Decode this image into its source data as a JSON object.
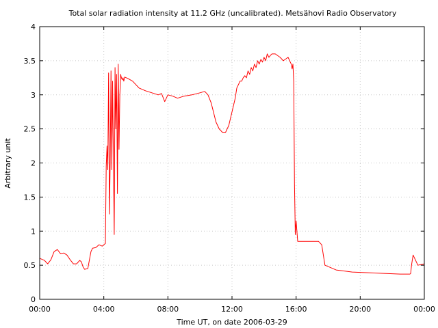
{
  "chart_data": {
    "type": "line",
    "title": "Total solar radiation intensity at 11.2 GHz (uncalibrated). Metsähovi Radio Observatory",
    "xlabel": "Time UT, on date 2006-03-29",
    "ylabel": "Arbitrary unit",
    "xlim": [
      0,
      24
    ],
    "ylim": [
      0,
      4
    ],
    "x_ticks": [
      {
        "value": 0,
        "label": "00:00"
      },
      {
        "value": 4,
        "label": "04:00"
      },
      {
        "value": 8,
        "label": "08:00"
      },
      {
        "value": 12,
        "label": "12:00"
      },
      {
        "value": 16,
        "label": "16:00"
      },
      {
        "value": 20,
        "label": "20:00"
      },
      {
        "value": 24,
        "label": "00:00"
      }
    ],
    "y_ticks": [
      {
        "value": 0,
        "label": "0"
      },
      {
        "value": 0.5,
        "label": "0.5"
      },
      {
        "value": 1,
        "label": "1"
      },
      {
        "value": 1.5,
        "label": "1.5"
      },
      {
        "value": 2,
        "label": "2"
      },
      {
        "value": 2.5,
        "label": "2.5"
      },
      {
        "value": 3,
        "label": "3"
      },
      {
        "value": 3.5,
        "label": "3.5"
      },
      {
        "value": 4,
        "label": "4"
      }
    ],
    "grid": true,
    "series_color": "#ff0000",
    "series": [
      {
        "x": [
          0,
          0.3,
          0.5,
          0.7,
          0.9,
          1.1,
          1.3,
          1.5,
          1.7,
          1.9,
          2.1,
          2.3,
          2.5,
          2.6,
          2.7,
          2.8,
          3.0,
          3.2,
          3.3,
          3.5,
          3.7,
          3.9,
          4.1,
          4.15,
          4.2,
          4.25,
          4.3,
          4.35,
          4.4,
          4.45,
          4.5,
          4.55,
          4.6,
          4.65,
          4.7,
          4.75,
          4.8,
          4.85,
          4.9,
          4.95,
          5.0,
          5.05,
          5.1,
          5.15,
          5.2,
          5.25,
          5.3,
          5.5,
          5.8,
          6.2,
          6.6,
          7.0,
          7.4,
          7.6,
          7.8,
          8.0,
          8.3,
          8.6,
          9.0,
          9.5,
          10.0,
          10.3,
          10.5,
          10.7,
          11.0,
          11.2,
          11.4,
          11.6,
          11.8,
          12.0,
          12.2,
          12.3,
          12.4,
          12.5,
          12.6,
          12.7,
          12.8,
          12.9,
          13.0,
          13.1,
          13.2,
          13.3,
          13.4,
          13.5,
          13.6,
          13.7,
          13.8,
          13.9,
          14.0,
          14.1,
          14.2,
          14.3,
          14.4,
          14.5,
          14.7,
          15.0,
          15.2,
          15.5,
          15.7,
          15.75,
          15.8,
          15.85,
          15.9,
          15.95,
          16.0,
          16.1,
          16.5,
          17.0,
          17.4,
          17.6,
          17.8,
          18.5,
          19.5,
          20.5,
          21.5,
          22.5,
          23.0,
          23.1,
          23.15,
          23.2,
          23.3,
          23.6,
          24.0
        ],
        "y": [
          0.6,
          0.57,
          0.52,
          0.58,
          0.7,
          0.73,
          0.67,
          0.68,
          0.65,
          0.58,
          0.52,
          0.52,
          0.57,
          0.55,
          0.48,
          0.44,
          0.45,
          0.7,
          0.75,
          0.76,
          0.8,
          0.78,
          0.82,
          1.95,
          2.25,
          1.9,
          3.32,
          1.25,
          2.0,
          3.35,
          1.9,
          3.2,
          2.1,
          0.95,
          3.4,
          2.5,
          3.3,
          1.55,
          3.45,
          2.2,
          3.0,
          3.3,
          3.25,
          3.22,
          3.25,
          3.2,
          3.26,
          3.24,
          3.2,
          3.1,
          3.06,
          3.03,
          3.0,
          3.02,
          2.9,
          3.0,
          2.98,
          2.95,
          2.98,
          3.0,
          3.03,
          3.05,
          3.0,
          2.88,
          2.6,
          2.5,
          2.45,
          2.45,
          2.55,
          2.75,
          2.95,
          3.1,
          3.15,
          3.2,
          3.2,
          3.25,
          3.28,
          3.25,
          3.35,
          3.3,
          3.4,
          3.35,
          3.45,
          3.4,
          3.5,
          3.45,
          3.52,
          3.48,
          3.55,
          3.5,
          3.6,
          3.55,
          3.58,
          3.6,
          3.6,
          3.55,
          3.5,
          3.55,
          3.45,
          3.38,
          3.45,
          3.2,
          1.7,
          0.95,
          1.15,
          0.85,
          0.85,
          0.85,
          0.85,
          0.8,
          0.5,
          0.43,
          0.4,
          0.39,
          0.38,
          0.37,
          0.37,
          0.37,
          0.38,
          0.5,
          0.65,
          0.5,
          0.52
        ]
      }
    ]
  }
}
